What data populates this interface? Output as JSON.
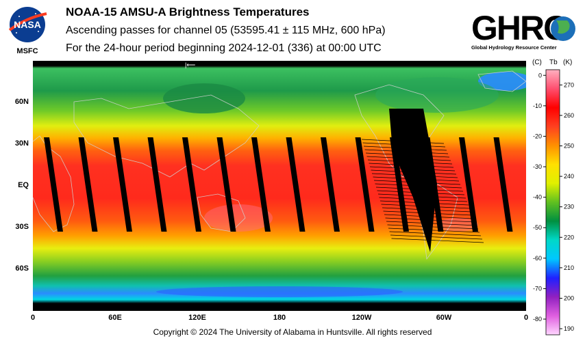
{
  "header": {
    "org_left": "MSFC",
    "nasa_logo_text": "NASA",
    "title": "NOAA-15 AMSU-A Brightness Temperatures",
    "subtitle": "Ascending passes for channel 05 (53595.41 ± 115 MHz, 600 hPa)",
    "period": "For the 24-hour period beginning 2024-12-01 (336) at 00:00 UTC",
    "ghrc_logo_text": "GHRC",
    "ghrc_tagline": "Global Hydrology Resource Center"
  },
  "map": {
    "type": "heatmap",
    "projection": "equirectangular",
    "lon_range": [
      0,
      360
    ],
    "lat_range": [
      -90,
      90
    ],
    "x_ticks": [
      "0",
      "60E",
      "120E",
      "180",
      "120W",
      "60W",
      "0"
    ],
    "y_ticks": [
      "60N",
      "30N",
      "EQ",
      "30S",
      "60S"
    ],
    "swath_gaps_count": 14
  },
  "colorbar": {
    "header_c": "(C)",
    "header_tb": "Tb",
    "header_k": "(K)",
    "celsius_ticks": [
      "0",
      "-10",
      "-20",
      "-30",
      "-40",
      "-50",
      "-60",
      "-70",
      "-80"
    ],
    "kelvin_ticks": [
      "270",
      "260",
      "250",
      "240",
      "230",
      "220",
      "210",
      "200",
      "190"
    ],
    "colors": [
      "#ffd6ff",
      "#e060e0",
      "#9020c0",
      "#2020ff",
      "#00c8ff",
      "#00d8c8",
      "#009040",
      "#60c020",
      "#e0f000",
      "#ffe000",
      "#ff9000",
      "#ff4020",
      "#ff0000",
      "#ff5070",
      "#ffb0c0"
    ]
  },
  "footer": {
    "copyright": "Copyright © 2024 The University of Alabama in Huntsville.  All rights reserved"
  }
}
